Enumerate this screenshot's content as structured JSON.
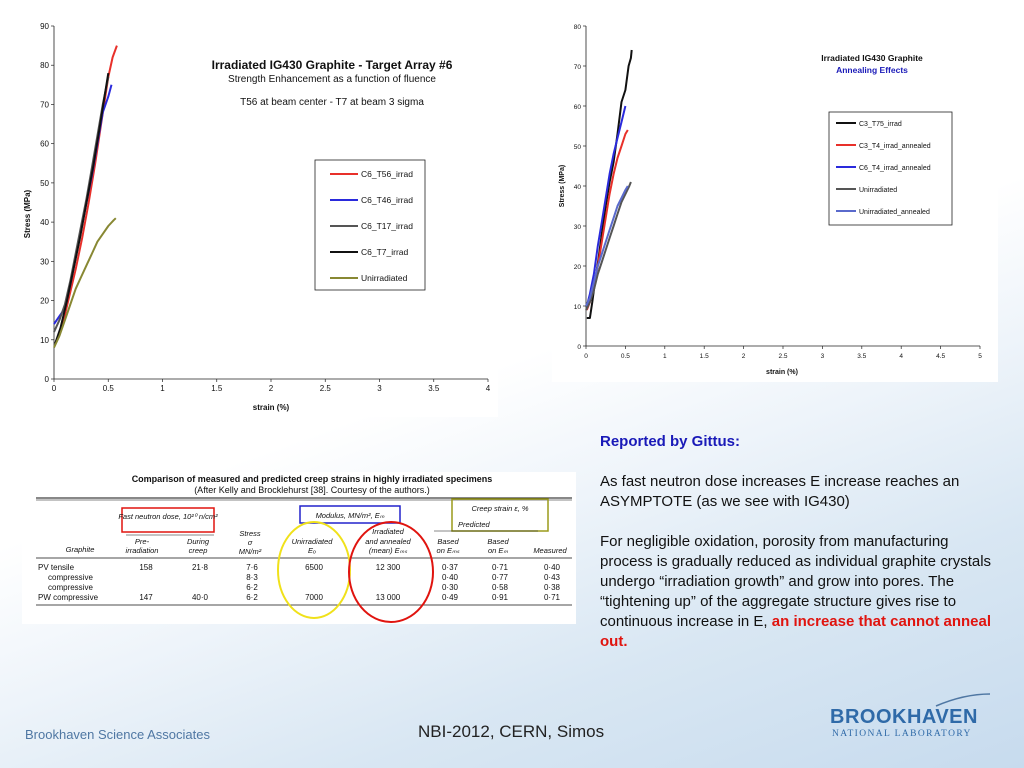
{
  "chart_data": [
    {
      "type": "line",
      "title": "Irradiated IG430 Graphite - Target Array #6",
      "subtitle": "Strength Enhancement as a function of fluence",
      "annotation": "T56 at beam center - T7 at beam 3 sigma",
      "xlabel": "strain (%)",
      "ylabel": "Stress (MPa)",
      "xlim": [
        0,
        4
      ],
      "ylim": [
        0,
        90
      ],
      "xticks": [
        "0",
        "0.5",
        "1",
        "1.5",
        "2",
        "2.5",
        "3",
        "3.5",
        "4"
      ],
      "yticks": [
        "0",
        "10",
        "20",
        "30",
        "40",
        "50",
        "60",
        "70",
        "80",
        "90"
      ],
      "grid": false,
      "legend_position": "right",
      "series": [
        {
          "name": "C6_T56_irrad",
          "color": "#e8302a",
          "x": [
            0.03,
            0.08,
            0.14,
            0.2,
            0.26,
            0.32,
            0.38,
            0.44,
            0.5,
            0.54,
            0.58
          ],
          "y": [
            10,
            14,
            21,
            28,
            36,
            45,
            55,
            66,
            77,
            82,
            85
          ]
        },
        {
          "name": "C6_T46_irrad",
          "color": "#2a2adc",
          "x": [
            0,
            0.05,
            0.1,
            0.15,
            0.2,
            0.25,
            0.3,
            0.35,
            0.4,
            0.45,
            0.5,
            0.53
          ],
          "y": [
            14,
            16,
            18,
            24,
            31,
            38,
            45,
            52,
            60,
            68,
            72,
            75
          ]
        },
        {
          "name": "C6_T17_irrad",
          "color": "#555555",
          "x": [
            0,
            0.05,
            0.1,
            0.15,
            0.2,
            0.25,
            0.3,
            0.35,
            0.4,
            0.45,
            0.5
          ],
          "y": [
            12,
            15,
            19,
            25,
            32,
            39,
            46,
            54,
            62,
            70,
            77
          ]
        },
        {
          "name": "C6_T7_irrad",
          "color": "#111111",
          "x": [
            0.01,
            0.06,
            0.12,
            0.18,
            0.24,
            0.3,
            0.36,
            0.42,
            0.46,
            0.5
          ],
          "y": [
            9,
            13,
            20,
            28,
            36,
            45,
            54,
            64,
            71,
            78
          ]
        },
        {
          "name": "Unirradiated",
          "color": "#888833",
          "x": [
            0,
            0.05,
            0.1,
            0.15,
            0.2,
            0.25,
            0.3,
            0.35,
            0.4,
            0.45,
            0.5,
            0.55,
            0.57
          ],
          "y": [
            8,
            11,
            15,
            19,
            23,
            26,
            29,
            32,
            35,
            37,
            39,
            40.5,
            41
          ]
        }
      ]
    },
    {
      "type": "line",
      "title": "Irradiated IG430 Graphite",
      "subtitle": "Annealing Effects",
      "xlabel": "strain (%)",
      "ylabel": "Stress (MPa)",
      "xlim": [
        0,
        5
      ],
      "ylim": [
        0,
        80
      ],
      "xticks": [
        "0",
        "0.5",
        "1",
        "1.5",
        "2",
        "2.5",
        "3",
        "3.5",
        "4",
        "4.5",
        "5"
      ],
      "yticks": [
        "0",
        "10",
        "20",
        "30",
        "40",
        "50",
        "60",
        "70",
        "80"
      ],
      "grid": false,
      "legend_position": "right",
      "series": [
        {
          "name": "C3_T75_irrad",
          "color": "#111111",
          "x": [
            0.01,
            0.05,
            0.08,
            0.12,
            0.16,
            0.2,
            0.25,
            0.3,
            0.35,
            0.4,
            0.45,
            0.5,
            0.54,
            0.57,
            0.58
          ],
          "y": [
            7,
            7,
            11,
            17,
            22,
            28,
            35,
            41,
            46,
            53,
            61,
            64,
            70,
            72,
            74
          ]
        },
        {
          "name": "C3_T4_irrad_annealed",
          "color": "#e8302a",
          "x": [
            0.01,
            0.05,
            0.1,
            0.15,
            0.2,
            0.25,
            0.3,
            0.35,
            0.4,
            0.45,
            0.5,
            0.53
          ],
          "y": [
            9,
            11,
            15,
            20,
            26,
            32,
            38,
            43,
            47,
            50,
            53,
            54
          ]
        },
        {
          "name": "C6_T4_irrad_annealed",
          "color": "#2a2adc",
          "x": [
            0.01,
            0.05,
            0.1,
            0.15,
            0.2,
            0.25,
            0.3,
            0.35,
            0.4,
            0.45,
            0.5
          ],
          "y": [
            10,
            13,
            18,
            25,
            31,
            37,
            43,
            48,
            52,
            56,
            60
          ]
        },
        {
          "name": "Unirradiated",
          "color": "#555555",
          "x": [
            0,
            0.05,
            0.1,
            0.15,
            0.2,
            0.25,
            0.3,
            0.35,
            0.4,
            0.45,
            0.5,
            0.55,
            0.57
          ],
          "y": [
            9,
            11,
            14,
            18,
            21,
            24,
            27,
            30,
            33,
            36,
            38,
            40,
            41
          ]
        },
        {
          "name": "Unirradiated_annealed",
          "color": "#5a6acc",
          "x": [
            0,
            0.05,
            0.1,
            0.15,
            0.2,
            0.25,
            0.3,
            0.35,
            0.4,
            0.45,
            0.5,
            0.53
          ],
          "y": [
            10,
            12,
            16,
            20,
            23,
            26,
            29,
            32,
            35,
            37,
            39,
            40
          ]
        }
      ]
    }
  ],
  "table": {
    "title": "Comparison of measured and predicted creep strains in highly irradiated specimens",
    "subtitle": "(After Kelly and Brocklehurst [38]. Courtesy of the authors.)",
    "group_dose": "Fast neutron dose, 10²⁰ n/cm²",
    "group_modulus": "Modulus, MN/m², Eₘ",
    "group_creep": "Creep strain ε, %",
    "group_predicted": "Predicted",
    "headers": {
      "graphite": "Graphite",
      "pre1": "Pre-",
      "pre2": "irradiation",
      "during1": "During",
      "during2": "creep",
      "stress1": "Stress",
      "stress2": "σ",
      "stress3": "MN/m²",
      "unirr1": "Unirradiated",
      "unirr2": "Eₒ",
      "irr1": "Irradiated",
      "irr2": "and annealed",
      "irr3": "(mean) Eₘₛ",
      "b1a": "Based",
      "b1b": "on Eₘₛ",
      "b2a": "Based",
      "b2b": "on Eₘ",
      "measured": "Measured"
    },
    "rows": [
      {
        "graphite": "PV tensile",
        "pre": "158",
        "during": "21·8",
        "stress": "7·6",
        "unirr": "6500",
        "irr": "12 300",
        "b1": "0·37",
        "b2": "0·71",
        "meas": "0·40"
      },
      {
        "graphite": "compressive",
        "pre": "",
        "during": "",
        "stress": "8·3",
        "unirr": "",
        "irr": "",
        "b1": "0·40",
        "b2": "0·77",
        "meas": "0·43"
      },
      {
        "graphite": "compressive",
        "pre": "",
        "during": "",
        "stress": "6·2",
        "unirr": "",
        "irr": "",
        "b1": "0·30",
        "b2": "0·58",
        "meas": "0·38"
      },
      {
        "graphite": "PW compressive",
        "pre": "147",
        "during": "40·0",
        "stress": "6·2",
        "unirr": "7000",
        "irr": "13 000",
        "b1": "0·49",
        "b2": "0·91",
        "meas": "0·71"
      }
    ]
  },
  "report": {
    "heading": "Reported by Gittus:",
    "para1": "As fast neutron dose increases E increase reaches an ASYMPTOTE (as we see with IG430)",
    "para2": "For negligible oxidation, porosity from manufacturing process is gradually reduced as individual graphite crystals undergo “irradiation growth” and grow into pores. The “tightening up” of the aggregate structure gives rise to continuous increase in E,",
    "para2_highlight": "an increase that cannot anneal out."
  },
  "footer": {
    "left": "Brookhaven Science Associates",
    "center": "NBI-2012, CERN, Simos",
    "logo_top": "BROOKHAVEN",
    "logo_bottom": "NATIONAL LABORATORY"
  },
  "colors": {
    "highlight_red": "#e0140f",
    "heading_blue": "#1a1ab8",
    "logo_blue": "#2f6aa8"
  }
}
